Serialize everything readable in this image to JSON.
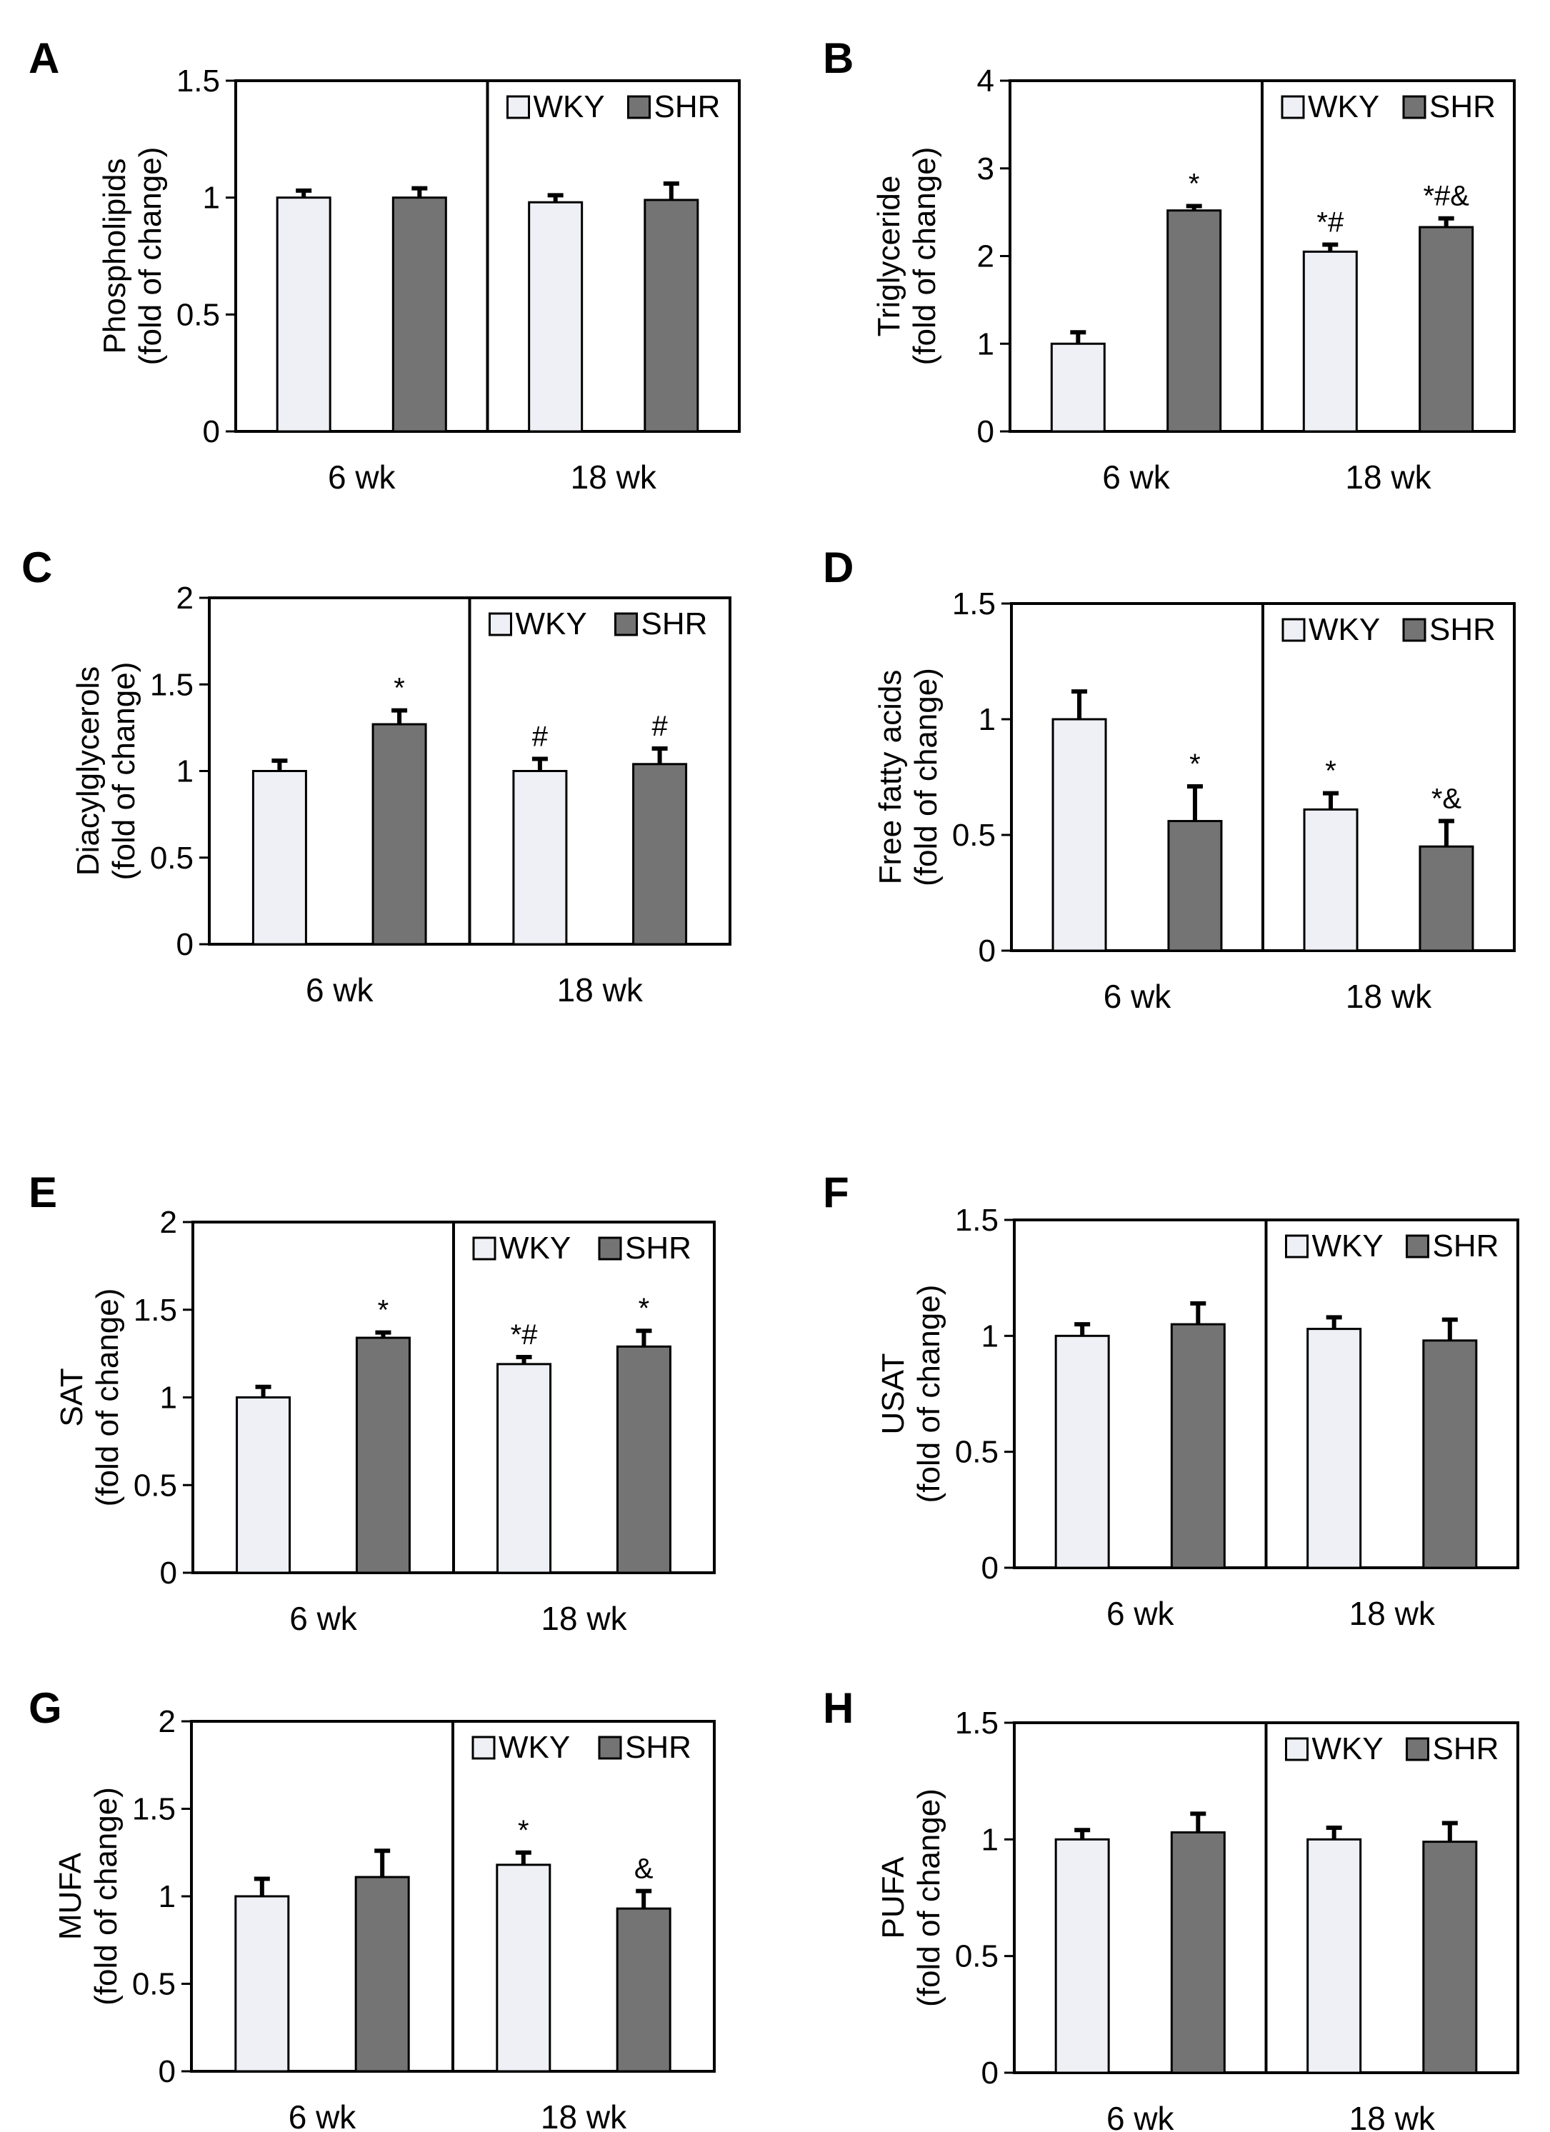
{
  "colors": {
    "wky": "#eef0f5",
    "shr": "#747474",
    "frame": "#000000"
  },
  "legend": {
    "wky": "WKY",
    "shr": "SHR"
  },
  "chart_data": [
    {
      "id": "A",
      "type": "bar",
      "ylabel": "Phospholipids",
      "ylabel2": "(fold of change)",
      "ylim": [
        0,
        1.5
      ],
      "yticks": [
        0,
        0.5,
        1,
        1.5
      ],
      "yticklabels": [
        "0",
        "0.5",
        "1",
        "1.5"
      ],
      "categories": [
        "6 wk",
        "18 wk"
      ],
      "series": [
        {
          "name": "WKY",
          "values": [
            1.0,
            0.98
          ],
          "errors": [
            0.03,
            0.03
          ],
          "sig": [
            "",
            ""
          ]
        },
        {
          "name": "SHR",
          "values": [
            1.0,
            0.99
          ],
          "errors": [
            0.04,
            0.07
          ],
          "sig": [
            "",
            ""
          ]
        }
      ]
    },
    {
      "id": "B",
      "type": "bar",
      "ylabel": "Triglyceride",
      "ylabel2": "(fold of change)",
      "ylim": [
        0,
        4
      ],
      "yticks": [
        0,
        1,
        2,
        3,
        4
      ],
      "yticklabels": [
        "0",
        "1",
        "2",
        "3",
        "4"
      ],
      "categories": [
        "6 wk",
        "18 wk"
      ],
      "series": [
        {
          "name": "WKY",
          "values": [
            1.0,
            2.05
          ],
          "errors": [
            0.13,
            0.08
          ],
          "sig": [
            "",
            "*#"
          ]
        },
        {
          "name": "SHR",
          "values": [
            2.52,
            2.33
          ],
          "errors": [
            0.05,
            0.1
          ],
          "sig": [
            "*",
            "*#&"
          ]
        }
      ]
    },
    {
      "id": "C",
      "type": "bar",
      "ylabel": "Diacylglycerols",
      "ylabel2": "(fold of change)",
      "ylim": [
        0,
        2
      ],
      "yticks": [
        0,
        0.5,
        1,
        1.5,
        2
      ],
      "yticklabels": [
        "0",
        "0.5",
        "1",
        "1.5",
        "2"
      ],
      "categories": [
        "6 wk",
        "18 wk"
      ],
      "series": [
        {
          "name": "WKY",
          "values": [
            1.0,
            1.0
          ],
          "errors": [
            0.06,
            0.07
          ],
          "sig": [
            "",
            "#"
          ]
        },
        {
          "name": "SHR",
          "values": [
            1.27,
            1.04
          ],
          "errors": [
            0.08,
            0.09
          ],
          "sig": [
            "*",
            "#"
          ]
        }
      ]
    },
    {
      "id": "D",
      "type": "bar",
      "ylabel": "Free fatty acids",
      "ylabel2": "(fold of change)",
      "ylim": [
        0,
        1.5
      ],
      "yticks": [
        0,
        0.5,
        1,
        1.5
      ],
      "yticklabels": [
        "0",
        "0.5",
        "1",
        "1.5"
      ],
      "categories": [
        "6 wk",
        "18 wk"
      ],
      "series": [
        {
          "name": "WKY",
          "values": [
            1.0,
            0.61
          ],
          "errors": [
            0.12,
            0.07
          ],
          "sig": [
            "",
            "*"
          ]
        },
        {
          "name": "SHR",
          "values": [
            0.56,
            0.45
          ],
          "errors": [
            0.15,
            0.11
          ],
          "sig": [
            "*",
            "*&"
          ]
        }
      ]
    },
    {
      "id": "E",
      "type": "bar",
      "ylabel": "SAT",
      "ylabel2": "(fold of change)",
      "ylim": [
        0,
        2
      ],
      "yticks": [
        0,
        0.5,
        1,
        1.5,
        2
      ],
      "yticklabels": [
        "0",
        "0.5",
        "1",
        "1.5",
        "2"
      ],
      "categories": [
        "6 wk",
        "18 wk"
      ],
      "series": [
        {
          "name": "WKY",
          "values": [
            1.0,
            1.19
          ],
          "errors": [
            0.06,
            0.04
          ],
          "sig": [
            "",
            "*#"
          ]
        },
        {
          "name": "SHR",
          "values": [
            1.34,
            1.29
          ],
          "errors": [
            0.03,
            0.09
          ],
          "sig": [
            "*",
            "*"
          ]
        }
      ]
    },
    {
      "id": "F",
      "type": "bar",
      "ylabel": "USAT",
      "ylabel2": "(fold of change)",
      "ylim": [
        0,
        1.5
      ],
      "yticks": [
        0,
        0.5,
        1,
        1.5
      ],
      "yticklabels": [
        "0",
        "0.5",
        "1",
        "1.5"
      ],
      "categories": [
        "6 wk",
        "18 wk"
      ],
      "series": [
        {
          "name": "WKY",
          "values": [
            1.0,
            1.03
          ],
          "errors": [
            0.05,
            0.05
          ],
          "sig": [
            "",
            ""
          ]
        },
        {
          "name": "SHR",
          "values": [
            1.05,
            0.98
          ],
          "errors": [
            0.09,
            0.09
          ],
          "sig": [
            "",
            ""
          ]
        }
      ]
    },
    {
      "id": "G",
      "type": "bar",
      "ylabel": "MUFA",
      "ylabel2": "(fold of change)",
      "ylim": [
        0,
        2
      ],
      "yticks": [
        0,
        0.5,
        1,
        1.5,
        2
      ],
      "yticklabels": [
        "0",
        "0.5",
        "1",
        "1.5",
        "2"
      ],
      "categories": [
        "6 wk",
        "18 wk"
      ],
      "series": [
        {
          "name": "WKY",
          "values": [
            1.0,
            1.18
          ],
          "errors": [
            0.1,
            0.07
          ],
          "sig": [
            "",
            "*"
          ]
        },
        {
          "name": "SHR",
          "values": [
            1.11,
            0.93
          ],
          "errors": [
            0.15,
            0.1
          ],
          "sig": [
            "",
            "&"
          ]
        }
      ]
    },
    {
      "id": "H",
      "type": "bar",
      "ylabel": "PUFA",
      "ylabel2": "(fold of change)",
      "ylim": [
        0,
        1.5
      ],
      "yticks": [
        0,
        0.5,
        1,
        1.5
      ],
      "yticklabels": [
        "0",
        "0.5",
        "1",
        "1.5"
      ],
      "categories": [
        "6 wk",
        "18 wk"
      ],
      "series": [
        {
          "name": "WKY",
          "values": [
            1.0,
            1.0
          ],
          "errors": [
            0.04,
            0.05
          ],
          "sig": [
            "",
            ""
          ]
        },
        {
          "name": "SHR",
          "values": [
            1.03,
            0.99
          ],
          "errors": [
            0.08,
            0.08
          ],
          "sig": [
            "",
            ""
          ]
        }
      ]
    }
  ]
}
